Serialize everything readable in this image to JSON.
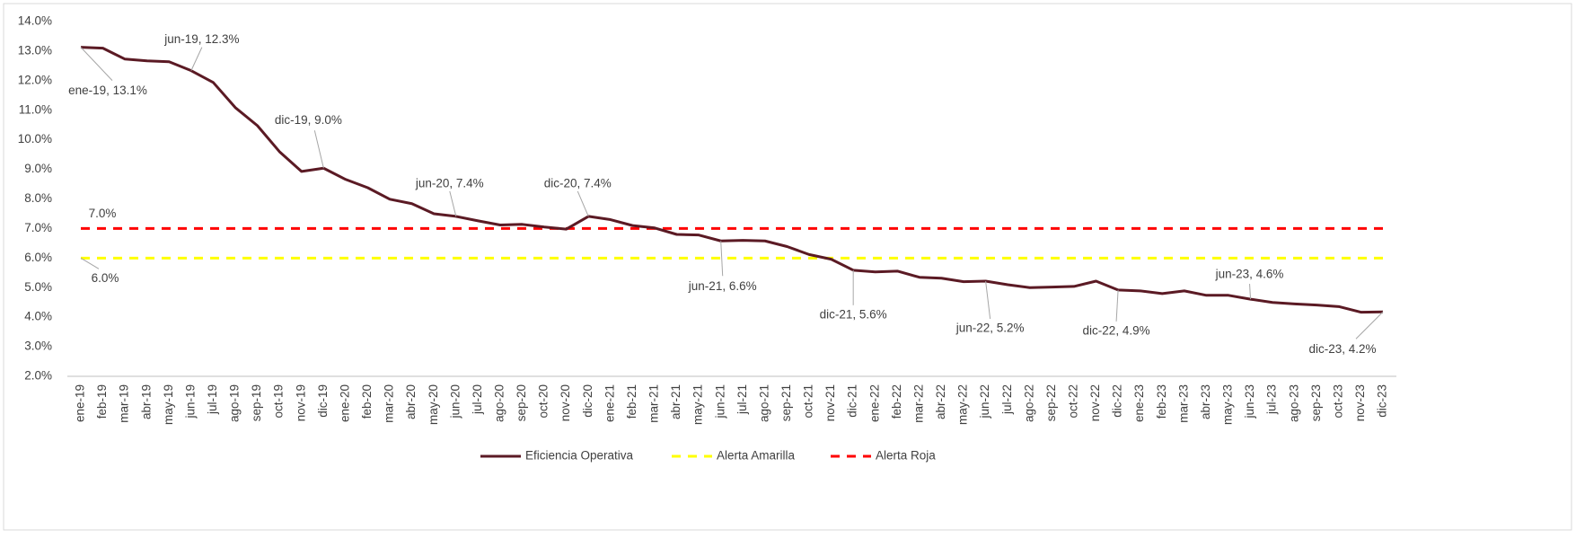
{
  "chart_data": {
    "type": "line",
    "categories": [
      "ene-19",
      "feb-19",
      "mar-19",
      "abr-19",
      "may-19",
      "jun-19",
      "jul-19",
      "ago-19",
      "sep-19",
      "oct-19",
      "nov-19",
      "dic-19",
      "ene-20",
      "feb-20",
      "mar-20",
      "abr-20",
      "may-20",
      "jun-20",
      "jul-20",
      "ago-20",
      "sep-20",
      "oct-20",
      "nov-20",
      "dic-20",
      "ene-21",
      "feb-21",
      "mar-21",
      "abr-21",
      "may-21",
      "jun-21",
      "jul-21",
      "ago-21",
      "sep-21",
      "oct-21",
      "nov-21",
      "dic-21",
      "ene-22",
      "feb-22",
      "mar-22",
      "abr-22",
      "may-22",
      "jun-22",
      "jul-22",
      "ago-22",
      "sep-22",
      "oct-22",
      "nov-22",
      "dic-22",
      "ene-23",
      "feb-23",
      "mar-23",
      "abr-23",
      "may-23",
      "jun-23",
      "jul-23",
      "ago-23",
      "sep-23",
      "oct-23",
      "nov-23",
      "dic-23"
    ],
    "series": [
      {
        "name": "Eficiencia Operativa",
        "color": "#5b1a24",
        "dashed": false,
        "values": [
          13.13,
          13.1,
          12.73,
          12.67,
          12.64,
          12.34,
          11.94,
          11.09,
          10.48,
          9.6,
          8.93,
          9.04,
          8.66,
          8.38,
          7.99,
          7.84,
          7.5,
          7.41,
          7.26,
          7.12,
          7.14,
          7.05,
          6.98,
          7.41,
          7.3,
          7.1,
          7.02,
          6.8,
          6.78,
          6.58,
          6.6,
          6.58,
          6.39,
          6.12,
          5.96,
          5.59,
          5.53,
          5.56,
          5.35,
          5.32,
          5.2,
          5.22,
          5.1,
          5.0,
          5.02,
          5.04,
          5.22,
          4.92,
          4.89,
          4.8,
          4.89,
          4.74,
          4.74,
          4.61,
          4.5,
          4.45,
          4.41,
          4.36,
          4.17,
          4.18
        ],
        "value_labels": [
          "ene-19, 13.1%",
          null,
          null,
          null,
          null,
          "jun-19, 12.3%",
          null,
          null,
          null,
          null,
          null,
          "dic-19, 9.0%",
          null,
          null,
          null,
          null,
          null,
          "jun-20, 7.4%",
          null,
          null,
          null,
          null,
          null,
          "dic-20, 7.4%",
          null,
          null,
          null,
          null,
          null,
          "jun-21, 6.6%",
          null,
          null,
          null,
          null,
          null,
          "dic-21, 5.6%",
          null,
          null,
          null,
          null,
          null,
          "jun-22, 5.2%",
          null,
          null,
          null,
          null,
          null,
          "dic-22, 4.9%",
          null,
          null,
          null,
          null,
          null,
          "jun-23, 4.6%",
          null,
          null,
          null,
          null,
          null,
          "dic-23, 4.2%"
        ]
      },
      {
        "name": "Alerta Amarilla",
        "color": "#ffff00",
        "dashed": true,
        "values": [
          6,
          6,
          6,
          6,
          6,
          6,
          6,
          6,
          6,
          6,
          6,
          6,
          6,
          6,
          6,
          6,
          6,
          6,
          6,
          6,
          6,
          6,
          6,
          6,
          6,
          6,
          6,
          6,
          6,
          6,
          6,
          6,
          6,
          6,
          6,
          6,
          6,
          6,
          6,
          6,
          6,
          6,
          6,
          6,
          6,
          6,
          6,
          6,
          6,
          6,
          6,
          6,
          6,
          6,
          6,
          6,
          6,
          6,
          6,
          6
        ],
        "value_labels": [
          "6.0%",
          null,
          null,
          null,
          null,
          null,
          null,
          null,
          null,
          null,
          null,
          null,
          null,
          null,
          null,
          null,
          null,
          null,
          null,
          null,
          null,
          null,
          null,
          null,
          null,
          null,
          null,
          null,
          null,
          null,
          null,
          null,
          null,
          null,
          null,
          null,
          null,
          null,
          null,
          null,
          null,
          null,
          null,
          null,
          null,
          null,
          null,
          null,
          null,
          null,
          null,
          null,
          null,
          null,
          null,
          null,
          null,
          null,
          null,
          null
        ]
      },
      {
        "name": "Alerta Roja",
        "color": "#ff0000",
        "dashed": true,
        "values": [
          7,
          7,
          7,
          7,
          7,
          7,
          7,
          7,
          7,
          7,
          7,
          7,
          7,
          7,
          7,
          7,
          7,
          7,
          7,
          7,
          7,
          7,
          7,
          7,
          7,
          7,
          7,
          7,
          7,
          7,
          7,
          7,
          7,
          7,
          7,
          7,
          7,
          7,
          7,
          7,
          7,
          7,
          7,
          7,
          7,
          7,
          7,
          7,
          7,
          7,
          7,
          7,
          7,
          7,
          7,
          7,
          7,
          7,
          7,
          7
        ],
        "value_labels": [
          "7.0%",
          null,
          null,
          null,
          null,
          null,
          null,
          null,
          null,
          null,
          null,
          null,
          null,
          null,
          null,
          null,
          null,
          null,
          null,
          null,
          null,
          null,
          null,
          null,
          null,
          null,
          null,
          null,
          null,
          null,
          null,
          null,
          null,
          null,
          null,
          null,
          null,
          null,
          null,
          null,
          null,
          null,
          null,
          null,
          null,
          null,
          null,
          null,
          null,
          null,
          null,
          null,
          null,
          null,
          null,
          null,
          null,
          null,
          null,
          null
        ]
      }
    ],
    "ylim": [
      2,
      14
    ],
    "yticks": [
      {
        "value": 2,
        "label": "2.0%"
      },
      {
        "value": 3,
        "label": "3.0%"
      },
      {
        "value": 4,
        "label": "4.0%"
      },
      {
        "value": 5,
        "label": "5.0%"
      },
      {
        "value": 6,
        "label": "6.0%"
      },
      {
        "value": 7,
        "label": "7.0%"
      },
      {
        "value": 8,
        "label": "8.0%"
      },
      {
        "value": 9,
        "label": "9.0%"
      },
      {
        "value": 10,
        "label": "10.0%"
      },
      {
        "value": 11,
        "label": "11.0%"
      },
      {
        "value": 12,
        "label": "12.0%"
      },
      {
        "value": 13,
        "label": "13.0%"
      },
      {
        "value": 14,
        "label": "14.0%"
      }
    ],
    "grid": false,
    "legend": "bottom"
  }
}
